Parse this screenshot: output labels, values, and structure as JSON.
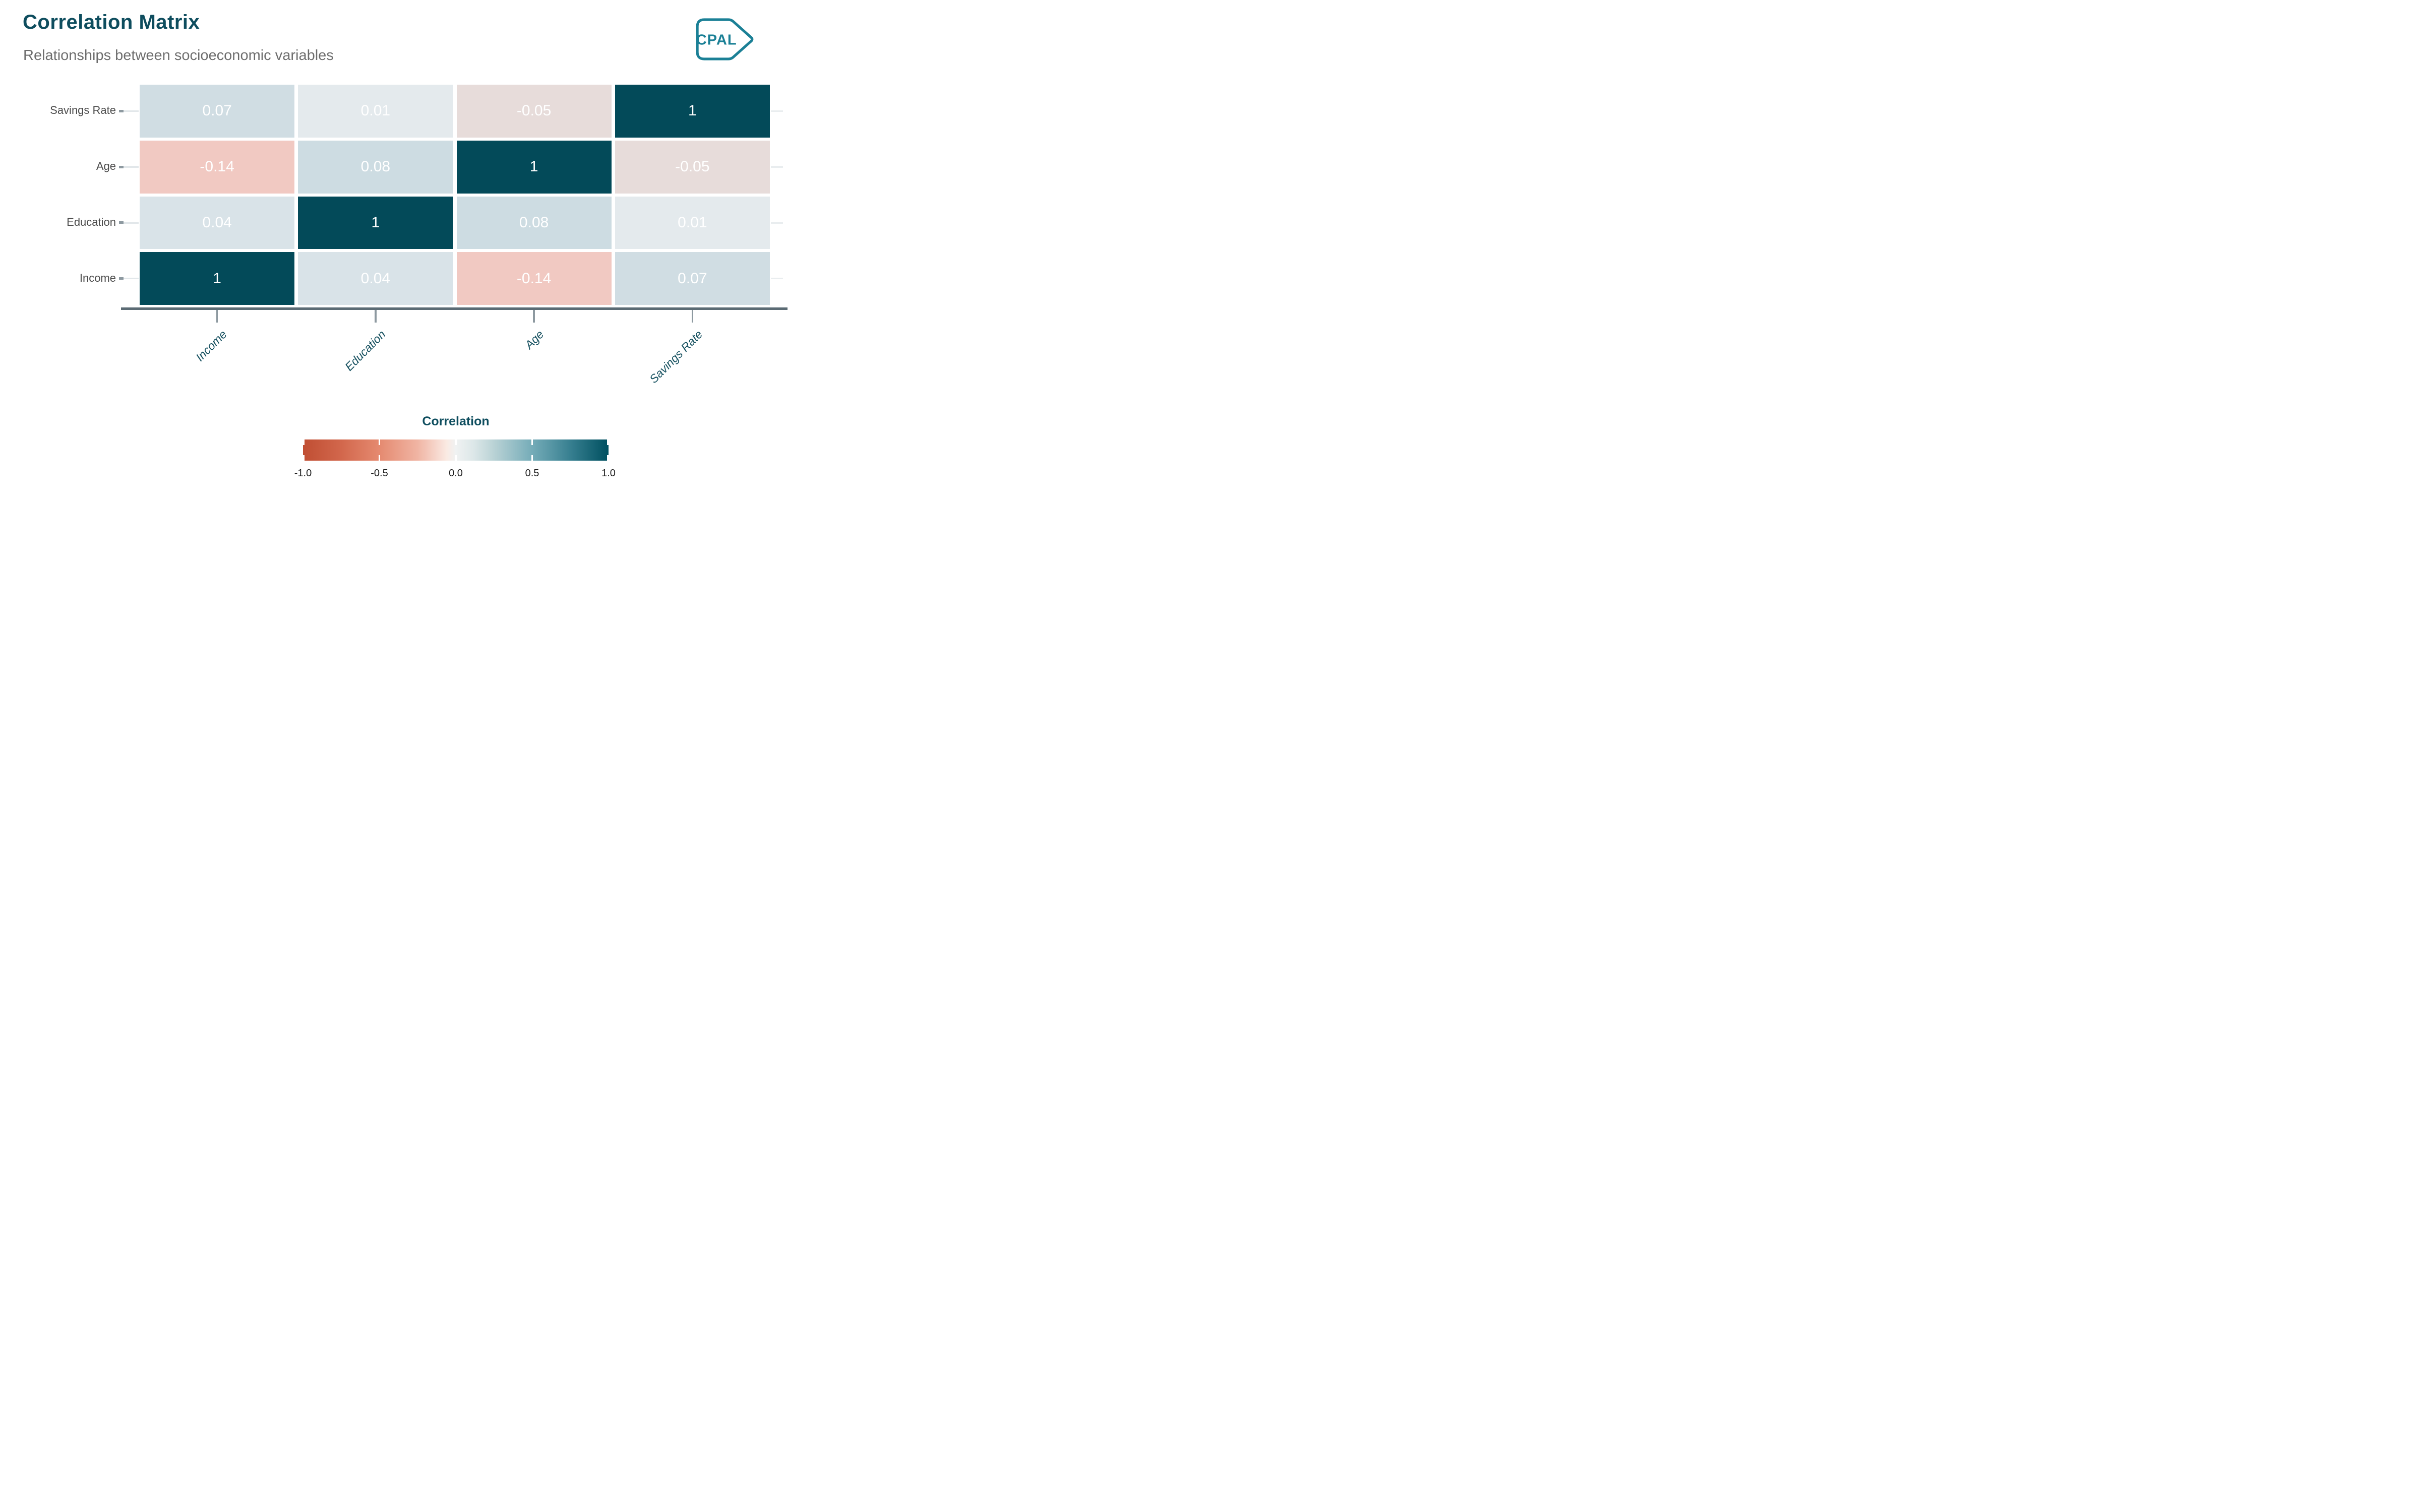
{
  "header": {
    "title": "Correlation Matrix",
    "subtitle": "Relationships between socioeconomic variables",
    "logo_text": "CPAL"
  },
  "colors": {
    "title_teal": "#0e4d5e",
    "subtitle_gray": "#6d6d6d",
    "logo_teal": "#1b8096",
    "axis_line": "#5b6b74",
    "tick_dark": "#8d99a0",
    "tick_light_left": "#e2e7ea",
    "tick_light_right": "#e9edef",
    "y_label_gray": "#4b4b4b",
    "x_label_teal": "#15505f",
    "cell_text": "#ffffff",
    "legend_tick_label": "#1c1c1c"
  },
  "chart_data": {
    "type": "heatmap",
    "title": "Correlation Matrix",
    "subtitle": "Relationships between socioeconomic variables",
    "x_categories": [
      "Income",
      "Education",
      "Age",
      "Savings Rate"
    ],
    "y_categories_top_to_bottom": [
      "Savings Rate",
      "Age",
      "Education",
      "Income"
    ],
    "matrix": [
      {
        "row": "Savings Rate",
        "values": [
          0.07,
          0.01,
          -0.05,
          1
        ]
      },
      {
        "row": "Age",
        "values": [
          -0.14,
          0.08,
          1,
          -0.05
        ]
      },
      {
        "row": "Education",
        "values": [
          0.04,
          1,
          0.08,
          0.01
        ]
      },
      {
        "row": "Income",
        "values": [
          1,
          0.04,
          -0.14,
          0.07
        ]
      }
    ],
    "value_colors": {
      "1": "#034a59",
      "0.08": "#cddce2",
      "0.07": "#d0dde3",
      "0.04": "#d9e3e8",
      "0.01": "#e4eaed",
      "-0.05": "#e7dcda",
      "-0.14": "#f1c9c2"
    },
    "legend": {
      "title": "Correlation",
      "position": "bottom",
      "range": [
        -1,
        1
      ],
      "ticks": [
        "-1.0",
        "-0.5",
        "0.0",
        "0.5",
        "1.0"
      ],
      "gradient_stops": [
        {
          "t": 0,
          "color": "#c04e33"
        },
        {
          "t": 0.125,
          "color": "#d2674c"
        },
        {
          "t": 0.25,
          "color": "#e58a70"
        },
        {
          "t": 0.375,
          "color": "#f0b4a3"
        },
        {
          "t": 0.47,
          "color": "#faeae3"
        },
        {
          "t": 0.5,
          "color": "#f0f2f2"
        },
        {
          "t": 0.56,
          "color": "#dce7e8"
        },
        {
          "t": 0.625,
          "color": "#b9d2d5"
        },
        {
          "t": 0.75,
          "color": "#75acb8"
        },
        {
          "t": 0.875,
          "color": "#377f90"
        },
        {
          "t": 1,
          "color": "#005060"
        }
      ]
    }
  }
}
